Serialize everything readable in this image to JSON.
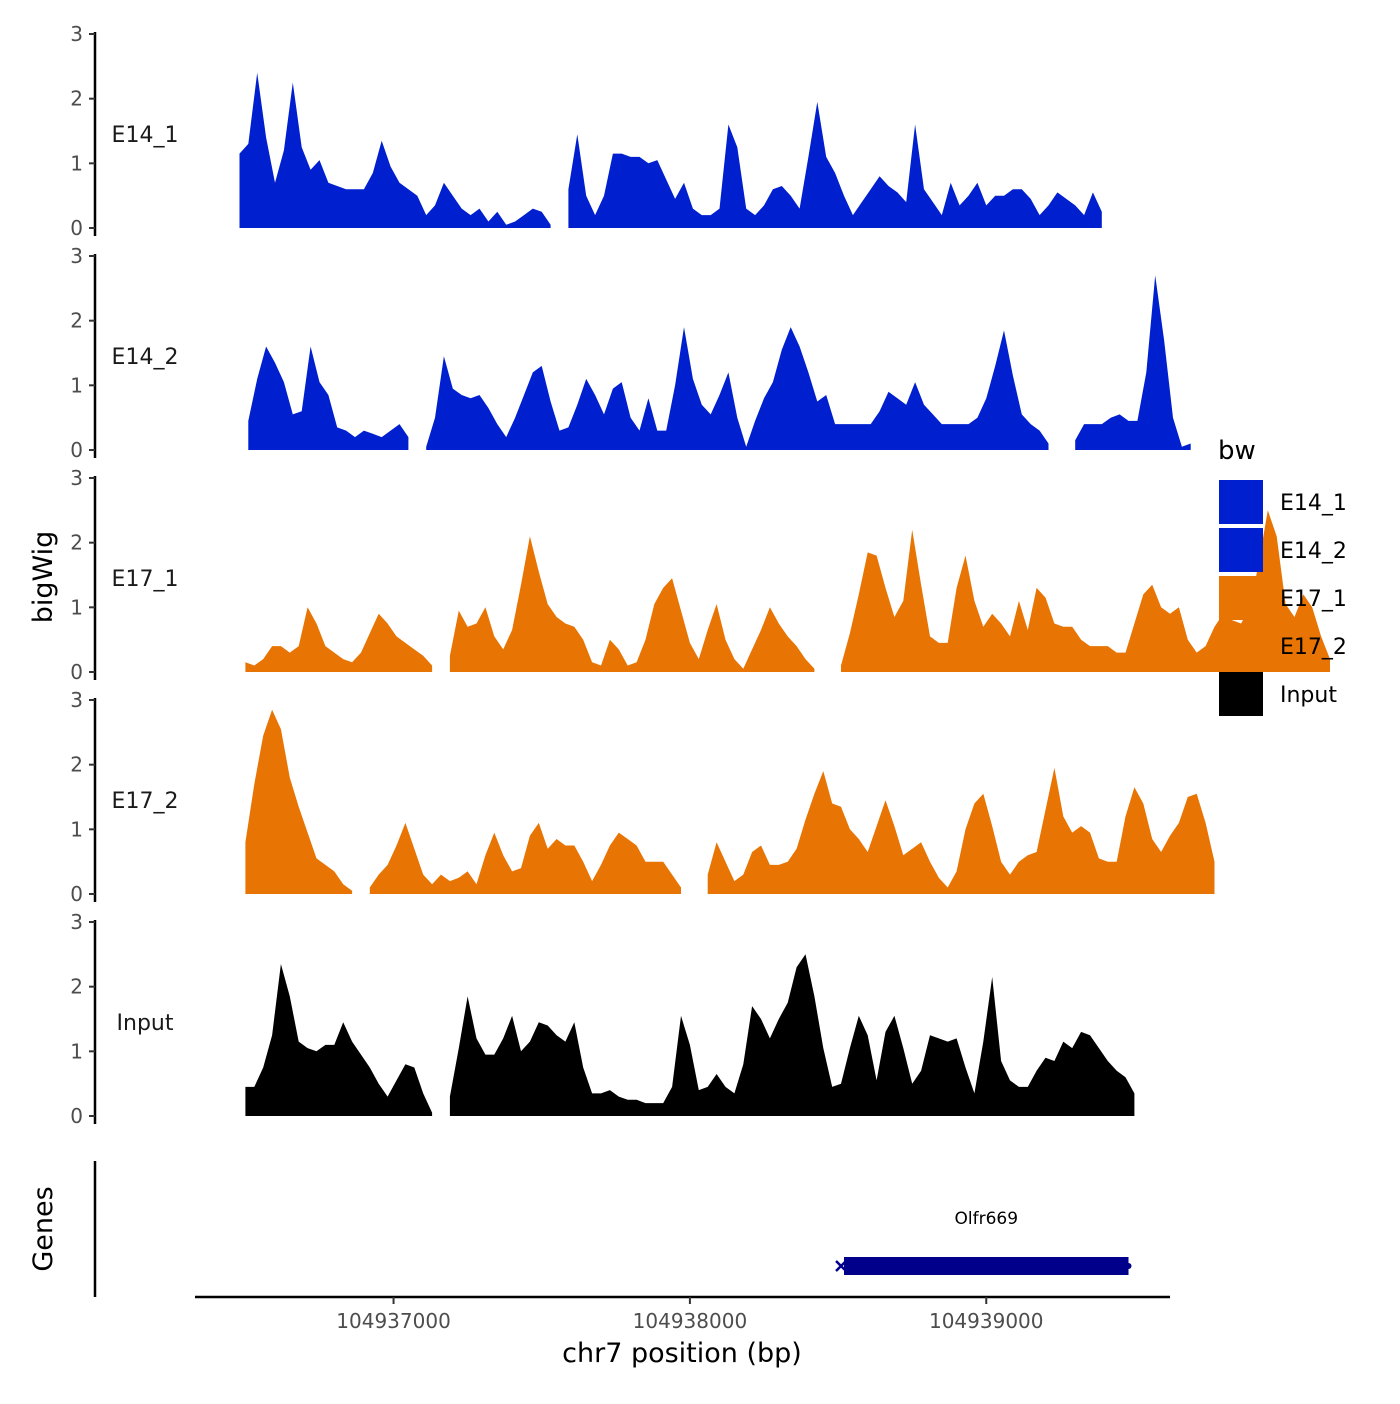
{
  "chart_data": {
    "type": "area",
    "title": "",
    "ylabel": "bigWig",
    "genes_label": "Genes",
    "xlabel": "chr7 position (bp)",
    "xlim": [
      104936330,
      104939620
    ],
    "ylim": [
      0,
      3
    ],
    "y_ticks": [
      "0",
      "1",
      "2",
      "3"
    ],
    "x_ticks": [
      {
        "value": 104937000,
        "label": "104937000"
      },
      {
        "value": 104938000,
        "label": "104938000"
      },
      {
        "value": 104939000,
        "label": "104939000"
      }
    ],
    "legend": {
      "title": "bw",
      "entries": [
        {
          "name": "E14_1",
          "color": "#0020CF"
        },
        {
          "name": "E14_2",
          "color": "#0020CF"
        },
        {
          "name": "E17_1",
          "color": "#E87403"
        },
        {
          "name": "E17_2",
          "color": "#E87403"
        },
        {
          "name": "Input",
          "color": "#000000"
        }
      ]
    },
    "series": [
      {
        "name": "E14_1",
        "color": "#0020CF",
        "start": 104936480,
        "step": 30,
        "values": [
          1.15,
          1.3,
          2.4,
          1.4,
          0.7,
          1.2,
          2.25,
          1.25,
          0.9,
          1.05,
          0.7,
          0.65,
          0.6,
          0.6,
          0.6,
          0.85,
          1.35,
          0.95,
          0.7,
          0.6,
          0.5,
          0.2,
          0.35,
          0.7,
          0.5,
          0.3,
          0.2,
          0.3,
          0.1,
          0.25,
          0.05,
          0.1,
          0.2,
          0.3,
          0.25,
          0.05,
          null,
          0.6,
          1.45,
          0.5,
          0.2,
          0.5,
          1.15,
          1.15,
          1.1,
          1.1,
          1.0,
          1.05,
          0.75,
          0.45,
          0.7,
          0.3,
          0.2,
          0.2,
          0.3,
          1.6,
          1.25,
          0.3,
          0.2,
          0.35,
          0.6,
          0.65,
          0.5,
          0.3,
          1.1,
          1.95,
          1.1,
          0.85,
          0.5,
          0.2,
          0.4,
          0.6,
          0.8,
          0.65,
          0.55,
          0.4,
          1.6,
          0.6,
          0.4,
          0.2,
          0.7,
          0.35,
          0.5,
          0.7,
          0.35,
          0.5,
          0.5,
          0.6,
          0.6,
          0.45,
          0.2,
          0.35,
          0.55,
          0.45,
          0.35,
          0.2,
          0.55,
          0.25
        ]
      },
      {
        "name": "E14_2",
        "color": "#0020CF",
        "start": 104936510,
        "step": 30,
        "values": [
          0.45,
          1.1,
          1.6,
          1.35,
          1.05,
          0.55,
          0.6,
          1.6,
          1.05,
          0.85,
          0.35,
          0.3,
          0.2,
          0.3,
          0.25,
          0.2,
          0.3,
          0.4,
          0.2,
          null,
          0.05,
          0.5,
          1.45,
          0.95,
          0.85,
          0.8,
          0.85,
          0.65,
          0.4,
          0.2,
          0.5,
          0.85,
          1.2,
          1.3,
          0.75,
          0.3,
          0.35,
          0.7,
          1.1,
          0.85,
          0.55,
          0.95,
          1.05,
          0.5,
          0.3,
          0.8,
          0.3,
          0.3,
          1.0,
          1.9,
          1.1,
          0.7,
          0.55,
          0.85,
          1.2,
          0.5,
          0.05,
          0.45,
          0.8,
          1.05,
          1.55,
          1.9,
          1.6,
          1.2,
          0.75,
          0.85,
          0.4,
          0.4,
          0.4,
          0.4,
          0.4,
          0.6,
          0.9,
          0.8,
          0.7,
          1.05,
          0.7,
          0.55,
          0.4,
          0.4,
          0.4,
          0.4,
          0.5,
          0.8,
          1.3,
          1.85,
          1.15,
          0.55,
          0.4,
          0.3,
          0.1,
          null,
          null,
          0.15,
          0.4,
          0.4,
          0.4,
          0.5,
          0.55,
          0.45,
          0.45,
          1.2,
          2.7,
          1.7,
          0.5,
          0.05,
          0.1
        ]
      },
      {
        "name": "E17_1",
        "color": "#E87403",
        "start": 104936500,
        "step": 30,
        "values": [
          0.15,
          0.1,
          0.2,
          0.4,
          0.4,
          0.3,
          0.4,
          1.0,
          0.75,
          0.4,
          0.3,
          0.2,
          0.15,
          0.3,
          0.6,
          0.9,
          0.75,
          0.55,
          0.45,
          0.35,
          0.25,
          0.1,
          null,
          0.25,
          0.95,
          0.7,
          0.75,
          1.0,
          0.55,
          0.35,
          0.65,
          1.35,
          2.1,
          1.55,
          1.05,
          0.85,
          0.75,
          0.7,
          0.5,
          0.15,
          0.1,
          0.5,
          0.35,
          0.1,
          0.15,
          0.5,
          1.05,
          1.3,
          1.45,
          0.95,
          0.45,
          0.2,
          0.65,
          1.05,
          0.5,
          0.2,
          0.05,
          0.35,
          0.65,
          1.0,
          0.75,
          0.55,
          0.4,
          0.2,
          0.05,
          null,
          null,
          0.1,
          0.6,
          1.2,
          1.85,
          1.8,
          1.3,
          0.85,
          1.1,
          2.2,
          1.35,
          0.55,
          0.45,
          0.45,
          1.3,
          1.8,
          1.1,
          0.7,
          0.9,
          0.75,
          0.55,
          1.1,
          0.65,
          1.3,
          1.15,
          0.75,
          0.7,
          0.7,
          0.5,
          0.4,
          0.4,
          0.4,
          0.3,
          0.3,
          0.75,
          1.2,
          1.35,
          1.0,
          0.9,
          1.0,
          0.5,
          0.3,
          0.4,
          0.7,
          0.9,
          0.8,
          0.75,
          1.0,
          1.7,
          2.5,
          2.1,
          1.05,
          0.85,
          1.2,
          1.0,
          0.55,
          0.2
        ]
      },
      {
        "name": "E17_2",
        "color": "#E87403",
        "start": 104936500,
        "step": 30,
        "values": [
          0.8,
          1.7,
          2.45,
          2.85,
          2.55,
          1.8,
          1.35,
          0.95,
          0.55,
          0.45,
          0.35,
          0.15,
          0.05,
          null,
          0.1,
          0.3,
          0.45,
          0.75,
          1.1,
          0.7,
          0.3,
          0.15,
          0.3,
          0.2,
          0.25,
          0.35,
          0.15,
          0.6,
          0.95,
          0.6,
          0.35,
          0.4,
          0.9,
          1.1,
          0.7,
          0.85,
          0.75,
          0.75,
          0.5,
          0.2,
          0.45,
          0.75,
          0.95,
          0.85,
          0.75,
          0.5,
          0.5,
          0.5,
          0.3,
          0.1,
          null,
          null,
          0.3,
          0.8,
          0.5,
          0.2,
          0.3,
          0.65,
          0.75,
          0.45,
          0.45,
          0.5,
          0.7,
          1.15,
          1.55,
          1.9,
          1.4,
          1.35,
          1.0,
          0.85,
          0.65,
          1.05,
          1.45,
          1.05,
          0.6,
          0.7,
          0.8,
          0.5,
          0.25,
          0.1,
          0.35,
          1.0,
          1.4,
          1.55,
          1.05,
          0.5,
          0.3,
          0.5,
          0.6,
          0.65,
          1.3,
          1.95,
          1.2,
          0.95,
          1.05,
          0.95,
          0.55,
          0.5,
          0.5,
          1.2,
          1.65,
          1.4,
          0.85,
          0.65,
          0.9,
          1.1,
          1.5,
          1.55,
          1.1,
          0.5
        ]
      },
      {
        "name": "Input",
        "color": "#000000",
        "start": 104936500,
        "step": 30,
        "values": [
          0.45,
          0.45,
          0.75,
          1.25,
          2.35,
          1.85,
          1.15,
          1.05,
          1.0,
          1.1,
          1.1,
          1.45,
          1.15,
          0.95,
          0.75,
          0.5,
          0.3,
          0.55,
          0.8,
          0.75,
          0.35,
          0.05,
          null,
          0.3,
          1.05,
          1.85,
          1.2,
          0.95,
          0.95,
          1.2,
          1.55,
          1.0,
          1.15,
          1.45,
          1.4,
          1.25,
          1.15,
          1.45,
          0.75,
          0.35,
          0.35,
          0.4,
          0.3,
          0.25,
          0.25,
          0.2,
          0.2,
          0.2,
          0.45,
          1.55,
          1.1,
          0.4,
          0.45,
          0.65,
          0.45,
          0.35,
          0.8,
          1.7,
          1.5,
          1.2,
          1.5,
          1.75,
          2.3,
          2.5,
          1.85,
          1.05,
          0.45,
          0.5,
          1.05,
          1.55,
          1.25,
          0.55,
          1.3,
          1.55,
          1.05,
          0.5,
          0.7,
          1.25,
          1.2,
          1.15,
          1.2,
          0.75,
          0.35,
          1.15,
          2.15,
          0.85,
          0.55,
          0.45,
          0.45,
          0.7,
          0.9,
          0.85,
          1.15,
          1.05,
          1.3,
          1.25,
          1.05,
          0.85,
          0.7,
          0.6,
          0.35
        ]
      }
    ],
    "genes": [
      {
        "name": "Olfr669",
        "start": 104938520,
        "end": 104939480,
        "strand": "-",
        "color": "#00008B"
      }
    ]
  }
}
